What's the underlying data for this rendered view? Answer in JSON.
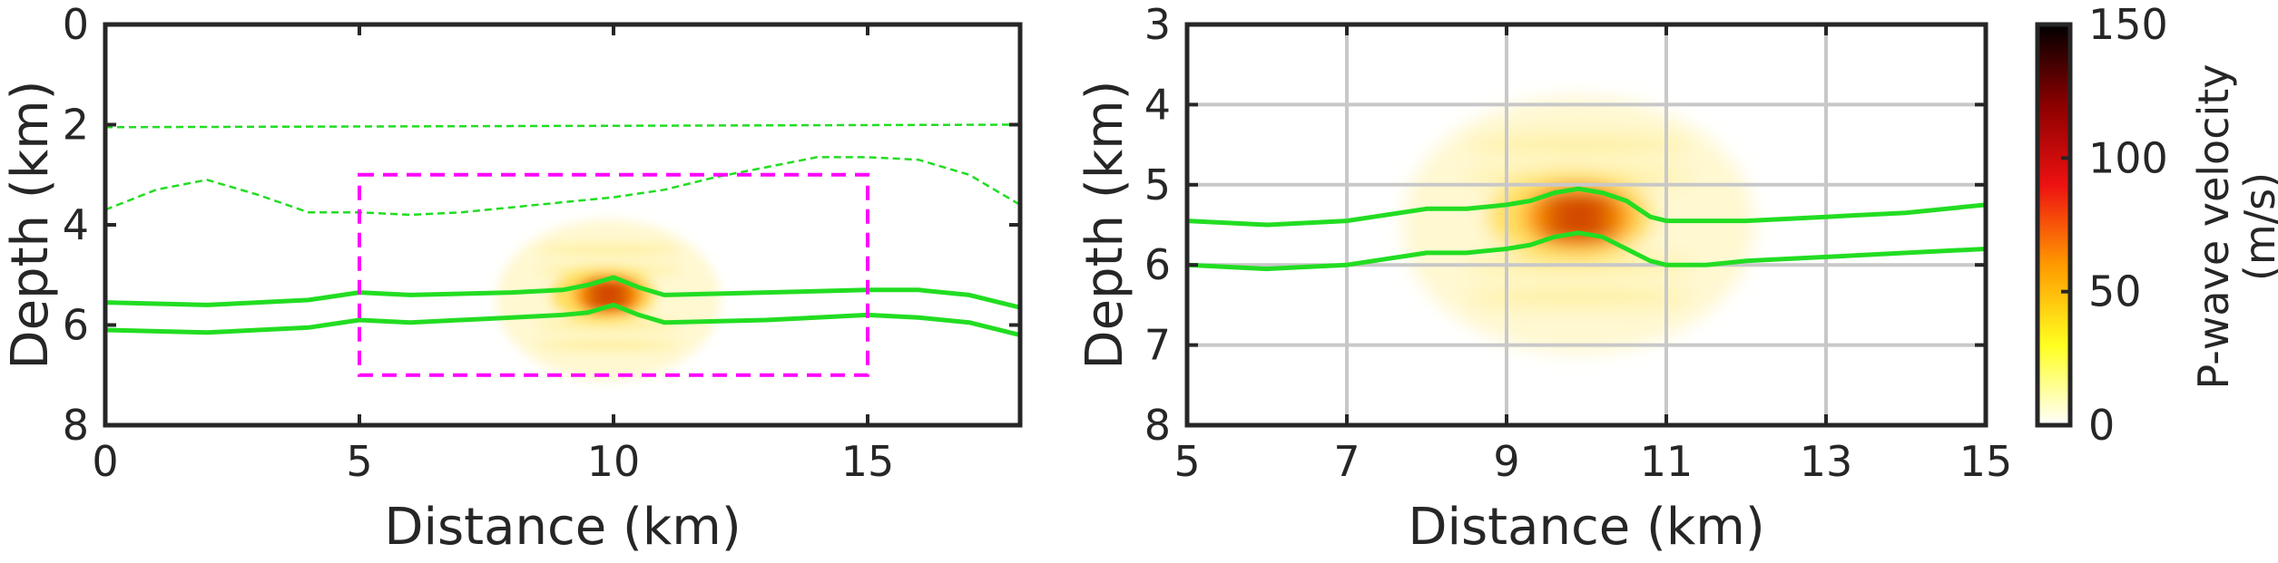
{
  "chart_data": [
    {
      "type": "heatmap",
      "title": "",
      "xlabel": "Distance (km)",
      "ylabel": "Depth (km)",
      "xlim": [
        0,
        18
      ],
      "ylim": [
        8,
        0
      ],
      "y_reversed": true,
      "x_ticks": [
        "0",
        "5",
        "10",
        "15"
      ],
      "x_tick_values": [
        0,
        5,
        10,
        15
      ],
      "y_ticks": [
        "0",
        "2",
        "4",
        "6",
        "8"
      ],
      "y_tick_values": [
        0,
        2,
        4,
        6,
        8
      ],
      "grid": false,
      "anomaly_center": {
        "x": 9.9,
        "y": 5.4
      },
      "anomaly_peak": 150,
      "zoom_box": {
        "x": [
          5,
          15
        ],
        "y": [
          3,
          7
        ],
        "style": "dashed",
        "color": "#ff00ff"
      },
      "series": [
        {
          "style": "solid",
          "color": "#22dd22",
          "x": [
            0,
            2,
            4,
            5,
            6,
            8,
            9,
            9.5,
            10,
            10.5,
            11,
            13,
            15,
            16,
            17,
            18
          ],
          "y": [
            5.55,
            5.6,
            5.5,
            5.35,
            5.4,
            5.35,
            5.3,
            5.2,
            5.05,
            5.25,
            5.4,
            5.35,
            5.3,
            5.3,
            5.4,
            5.65
          ]
        },
        {
          "style": "solid",
          "color": "#22dd22",
          "x": [
            0,
            2,
            4,
            5,
            6,
            8,
            9,
            9.5,
            10,
            10.5,
            11,
            13,
            15,
            16,
            17,
            18
          ],
          "y": [
            6.1,
            6.15,
            6.05,
            5.9,
            5.95,
            5.85,
            5.8,
            5.75,
            5.6,
            5.8,
            5.95,
            5.9,
            5.8,
            5.85,
            5.95,
            6.2
          ]
        },
        {
          "style": "dotted",
          "color": "#22dd22",
          "x": [
            0,
            18
          ],
          "y": [
            2.05,
            2.0
          ]
        },
        {
          "style": "dotted",
          "color": "#22dd22",
          "x": [
            0,
            1,
            2,
            3,
            4,
            5,
            6,
            7,
            8,
            9,
            10,
            11,
            12,
            13,
            14,
            15,
            16,
            17,
            18
          ],
          "y": [
            3.7,
            3.3,
            3.1,
            3.4,
            3.75,
            3.75,
            3.8,
            3.75,
            3.65,
            3.55,
            3.45,
            3.3,
            3.05,
            2.85,
            2.65,
            2.65,
            2.7,
            3.0,
            3.6
          ]
        }
      ]
    },
    {
      "type": "heatmap",
      "title": "",
      "xlabel": "Distance (km)",
      "ylabel": "Depth (km)",
      "xlim": [
        5,
        15
      ],
      "ylim": [
        8,
        3
      ],
      "y_reversed": true,
      "x_ticks": [
        "5",
        "7",
        "9",
        "11",
        "13",
        "15"
      ],
      "x_tick_values": [
        5,
        7,
        9,
        11,
        13,
        15
      ],
      "y_ticks": [
        "3",
        "4",
        "5",
        "6",
        "7",
        "8"
      ],
      "y_tick_values": [
        3,
        4,
        5,
        6,
        7,
        8
      ],
      "grid": true,
      "anomaly_center": {
        "x": 9.9,
        "y": 5.4
      },
      "anomaly_peak": 150,
      "series": [
        {
          "style": "solid",
          "color": "#22dd22",
          "x": [
            5,
            6,
            7,
            8,
            8.5,
            9,
            9.3,
            9.6,
            9.9,
            10.2,
            10.5,
            10.8,
            11,
            11.5,
            12,
            13,
            14,
            15
          ],
          "y": [
            5.45,
            5.5,
            5.45,
            5.3,
            5.3,
            5.25,
            5.2,
            5.1,
            5.05,
            5.1,
            5.2,
            5.4,
            5.45,
            5.45,
            5.45,
            5.4,
            5.35,
            5.25
          ]
        },
        {
          "style": "solid",
          "color": "#22dd22",
          "x": [
            5,
            6,
            7,
            8,
            8.5,
            9,
            9.3,
            9.6,
            9.9,
            10.2,
            10.5,
            10.8,
            11,
            11.5,
            12,
            13,
            14,
            15
          ],
          "y": [
            6.0,
            6.05,
            6.0,
            5.85,
            5.85,
            5.8,
            5.75,
            5.65,
            5.6,
            5.65,
            5.8,
            5.95,
            6.0,
            6.0,
            5.95,
            5.9,
            5.85,
            5.8
          ]
        }
      ]
    }
  ],
  "colorbar": {
    "label_line1": "P-wave velocity",
    "label_line2": "(m/s)",
    "ticks": [
      "0",
      "50",
      "100",
      "150"
    ],
    "tick_values": [
      0,
      50,
      100,
      150
    ],
    "range": [
      0,
      150
    ],
    "colormap": [
      "#ffffff",
      "#ffff20",
      "#ff9a00",
      "#ee1111",
      "#8b0000",
      "#000000"
    ]
  }
}
